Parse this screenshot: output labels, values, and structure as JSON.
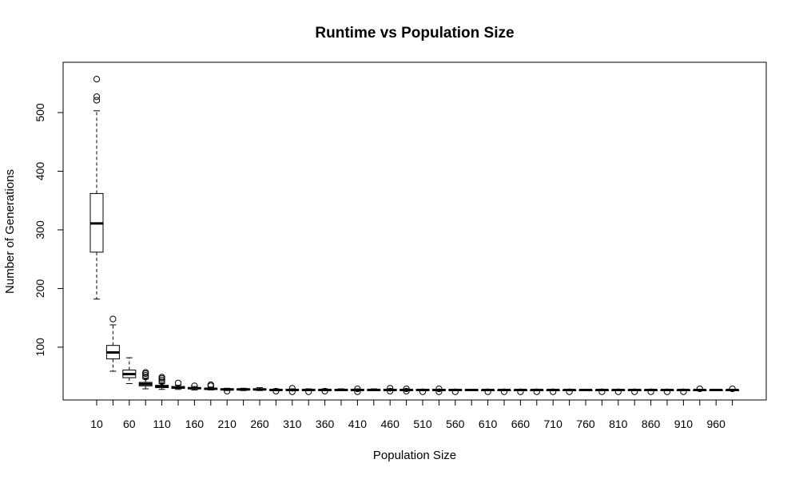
{
  "chart_data": {
    "type": "boxplot",
    "title": "Runtime vs Population Size",
    "xlabel": "Population Size",
    "ylabel": "Number of Generations",
    "ylim": [
      0,
      560
    ],
    "x_tick_labels": [
      "10",
      "60",
      "110",
      "160",
      "210",
      "260",
      "310",
      "360",
      "410",
      "460",
      "510",
      "560",
      "610",
      "660",
      "710",
      "760",
      "810",
      "860",
      "910",
      "960"
    ],
    "y_ticks": [
      100,
      200,
      300,
      400,
      500
    ],
    "boxes": [
      {
        "x": 10,
        "whisker_low": 182,
        "q1": 262,
        "median": 311,
        "q3": 362,
        "whisker_high": 503,
        "outliers": [
          521,
          527,
          557
        ]
      },
      {
        "x": 35,
        "whisker_low": 59,
        "q1": 80,
        "median": 91,
        "q3": 103,
        "whisker_high": 138,
        "outliers": [
          148
        ]
      },
      {
        "x": 60,
        "whisker_low": 38,
        "q1": 48,
        "median": 54,
        "q3": 61,
        "whisker_high": 82,
        "outliers": []
      },
      {
        "x": 85,
        "whisker_low": 29,
        "q1": 34,
        "median": 37,
        "q3": 40,
        "whisker_high": 46,
        "outliers": [
          49,
          52,
          55,
          57
        ]
      },
      {
        "x": 110,
        "whisker_low": 28,
        "q1": 31,
        "median": 33,
        "q3": 35,
        "whisker_high": 38,
        "outliers": [
          41,
          44,
          47,
          49
        ]
      },
      {
        "x": 135,
        "whisker_low": 28,
        "q1": 30,
        "median": 31,
        "q3": 33,
        "whisker_high": 35,
        "outliers": [
          39
        ]
      },
      {
        "x": 160,
        "whisker_low": 27,
        "q1": 29,
        "median": 30,
        "q3": 31,
        "whisker_high": 33,
        "outliers": [
          34
        ]
      },
      {
        "x": 185,
        "whisker_low": 27,
        "q1": 28,
        "median": 29,
        "q3": 30,
        "whisker_high": 32,
        "outliers": [
          34,
          36
        ]
      },
      {
        "x": 210,
        "whisker_low": 26,
        "q1": 27,
        "median": 28,
        "q3": 29,
        "whisker_high": 30,
        "outliers": [
          25
        ]
      },
      {
        "x": 235,
        "whisker_low": 26,
        "q1": 27,
        "median": 28,
        "q3": 29,
        "whisker_high": 30,
        "outliers": []
      },
      {
        "x": 260,
        "whisker_low": 26,
        "q1": 27,
        "median": 28,
        "q3": 29,
        "whisker_high": 31,
        "outliers": []
      },
      {
        "x": 285,
        "whisker_low": 26,
        "q1": 27,
        "median": 27,
        "q3": 28,
        "whisker_high": 29,
        "outliers": [
          25
        ]
      },
      {
        "x": 310,
        "whisker_low": 26,
        "q1": 27,
        "median": 27,
        "q3": 28,
        "whisker_high": 29,
        "outliers": [
          24,
          30
        ]
      },
      {
        "x": 335,
        "whisker_low": 26,
        "q1": 26,
        "median": 27,
        "q3": 28,
        "whisker_high": 29,
        "outliers": [
          24
        ]
      },
      {
        "x": 360,
        "whisker_low": 26,
        "q1": 26,
        "median": 27,
        "q3": 28,
        "whisker_high": 29,
        "outliers": [
          25
        ]
      },
      {
        "x": 385,
        "whisker_low": 26,
        "q1": 26,
        "median": 27,
        "q3": 28,
        "whisker_high": 29,
        "outliers": []
      },
      {
        "x": 410,
        "whisker_low": 26,
        "q1": 26,
        "median": 27,
        "q3": 28,
        "whisker_high": 29,
        "outliers": [
          24,
          29
        ]
      },
      {
        "x": 435,
        "whisker_low": 26,
        "q1": 26,
        "median": 27,
        "q3": 28,
        "whisker_high": 29,
        "outliers": []
      },
      {
        "x": 460,
        "whisker_low": 26,
        "q1": 26,
        "median": 27,
        "q3": 28,
        "whisker_high": 29,
        "outliers": [
          25,
          30
        ]
      },
      {
        "x": 485,
        "whisker_low": 26,
        "q1": 26,
        "median": 27,
        "q3": 28,
        "whisker_high": 29,
        "outliers": [
          25,
          29
        ]
      },
      {
        "x": 510,
        "whisker_low": 26,
        "q1": 26,
        "median": 27,
        "q3": 28,
        "whisker_high": 28,
        "outliers": [
          24
        ]
      },
      {
        "x": 535,
        "whisker_low": 26,
        "q1": 26,
        "median": 27,
        "q3": 28,
        "whisker_high": 28,
        "outliers": [
          24,
          29
        ]
      },
      {
        "x": 560,
        "whisker_low": 26,
        "q1": 26,
        "median": 27,
        "q3": 28,
        "whisker_high": 28,
        "outliers": [
          24
        ]
      },
      {
        "x": 585,
        "whisker_low": 26,
        "q1": 26,
        "median": 27,
        "q3": 28,
        "whisker_high": 28,
        "outliers": []
      },
      {
        "x": 610,
        "whisker_low": 26,
        "q1": 26,
        "median": 27,
        "q3": 27,
        "whisker_high": 28,
        "outliers": [
          24
        ]
      },
      {
        "x": 635,
        "whisker_low": 26,
        "q1": 26,
        "median": 27,
        "q3": 27,
        "whisker_high": 28,
        "outliers": [
          24
        ]
      },
      {
        "x": 660,
        "whisker_low": 26,
        "q1": 26,
        "median": 27,
        "q3": 27,
        "whisker_high": 28,
        "outliers": [
          24
        ]
      },
      {
        "x": 685,
        "whisker_low": 26,
        "q1": 26,
        "median": 27,
        "q3": 27,
        "whisker_high": 28,
        "outliers": [
          24
        ]
      },
      {
        "x": 710,
        "whisker_low": 26,
        "q1": 26,
        "median": 27,
        "q3": 27,
        "whisker_high": 28,
        "outliers": [
          24
        ]
      },
      {
        "x": 735,
        "whisker_low": 26,
        "q1": 26,
        "median": 27,
        "q3": 27,
        "whisker_high": 28,
        "outliers": [
          24
        ]
      },
      {
        "x": 760,
        "whisker_low": 26,
        "q1": 26,
        "median": 27,
        "q3": 27,
        "whisker_high": 28,
        "outliers": []
      },
      {
        "x": 785,
        "whisker_low": 26,
        "q1": 26,
        "median": 27,
        "q3": 27,
        "whisker_high": 28,
        "outliers": [
          24
        ]
      },
      {
        "x": 810,
        "whisker_low": 26,
        "q1": 26,
        "median": 27,
        "q3": 27,
        "whisker_high": 28,
        "outliers": [
          24
        ]
      },
      {
        "x": 835,
        "whisker_low": 26,
        "q1": 26,
        "median": 27,
        "q3": 27,
        "whisker_high": 28,
        "outliers": [
          24
        ]
      },
      {
        "x": 860,
        "whisker_low": 26,
        "q1": 26,
        "median": 27,
        "q3": 27,
        "whisker_high": 28,
        "outliers": [
          24
        ]
      },
      {
        "x": 885,
        "whisker_low": 26,
        "q1": 26,
        "median": 27,
        "q3": 27,
        "whisker_high": 28,
        "outliers": [
          24
        ]
      },
      {
        "x": 910,
        "whisker_low": 26,
        "q1": 26,
        "median": 27,
        "q3": 27,
        "whisker_high": 28,
        "outliers": [
          24
        ]
      },
      {
        "x": 935,
        "whisker_low": 26,
        "q1": 26,
        "median": 27,
        "q3": 27,
        "whisker_high": 28,
        "outliers": [
          29
        ]
      },
      {
        "x": 960,
        "whisker_low": 26,
        "q1": 26,
        "median": 27,
        "q3": 27,
        "whisker_high": 28,
        "outliers": []
      },
      {
        "x": 985,
        "whisker_low": 26,
        "q1": 26,
        "median": 27,
        "q3": 27,
        "whisker_high": 28,
        "outliers": [
          29
        ]
      }
    ],
    "grid": false,
    "legend": "none",
    "colors": {
      "stroke": "#000000",
      "background": "#ffffff"
    }
  }
}
